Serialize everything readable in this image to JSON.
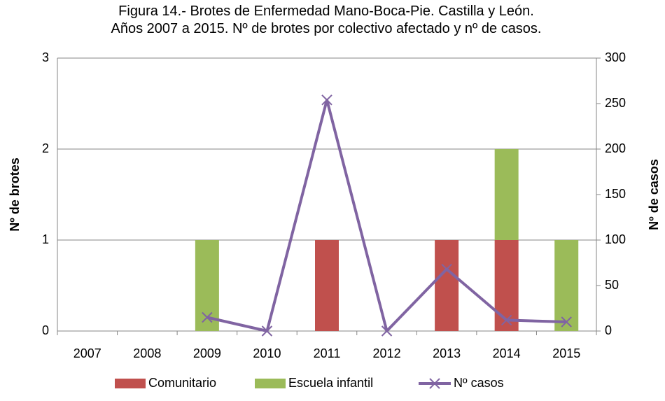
{
  "chart_data": {
    "type": "bar",
    "title": "Figura 14.- Brotes de Enfermedad Mano-Boca-Pie. Castilla y León. Años 2007 a 2015. Nº de brotes por colectivo afectado y nº de casos.",
    "y_label": "Nº de brotes",
    "y2_label": "Nº de casos",
    "categories": [
      "2007",
      "2008",
      "2009",
      "2010",
      "2011",
      "2012",
      "2013",
      "2014",
      "2015"
    ],
    "stacked": true,
    "series": [
      {
        "name": "Comunitario",
        "type": "bar",
        "color": "#c0504d",
        "values": [
          0,
          0,
          0,
          0,
          1,
          0,
          1,
          1,
          0
        ]
      },
      {
        "name": "Escuela infantil",
        "type": "bar",
        "color": "#9bbb59",
        "values": [
          0,
          0,
          1,
          0,
          0,
          0,
          0,
          1,
          1
        ]
      },
      {
        "name": "Nº casos",
        "type": "line",
        "axis": "y2",
        "color": "#8064a2",
        "values": [
          null,
          null,
          15,
          0,
          254,
          0,
          68,
          12,
          10
        ]
      }
    ],
    "ylim": [
      0,
      3
    ],
    "yticks": [
      0,
      1,
      2,
      3
    ],
    "y2lim": [
      0,
      300
    ],
    "y2ticks": [
      0,
      50,
      100,
      150,
      200,
      250,
      300
    ],
    "grid": true,
    "legend": "bottom"
  }
}
